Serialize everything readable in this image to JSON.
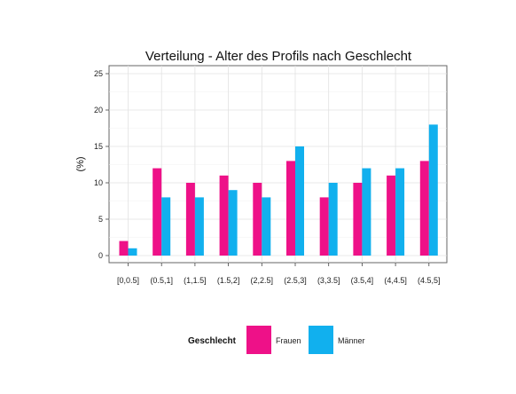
{
  "chart_data": {
    "type": "bar",
    "title": "Verteilung - Alter des Profils nach Geschlecht",
    "xlabel": "",
    "ylabel": "(%)",
    "ylim": [
      0,
      25
    ],
    "yticks": [
      0,
      5,
      10,
      15,
      20,
      25
    ],
    "grid": true,
    "legend_position": "bottom",
    "legend_title": "Geschlecht",
    "categories": [
      "[0,0.5]",
      "(0.5,1]",
      "(1,1.5]",
      "(1.5,2]",
      "(2,2.5]",
      "(2.5,3]",
      "(3,3.5]",
      "(3.5,4]",
      "(4,4.5]",
      "(4.5,5]"
    ],
    "series": [
      {
        "name": "Frauen",
        "color": "#EE1188",
        "values": [
          2,
          12,
          10,
          11,
          10,
          13,
          8,
          10,
          11,
          13
        ]
      },
      {
        "name": "Männer",
        "color": "#11B0EE",
        "values": [
          1,
          8,
          8,
          9,
          8,
          15,
          10,
          12,
          12,
          18
        ]
      }
    ]
  }
}
